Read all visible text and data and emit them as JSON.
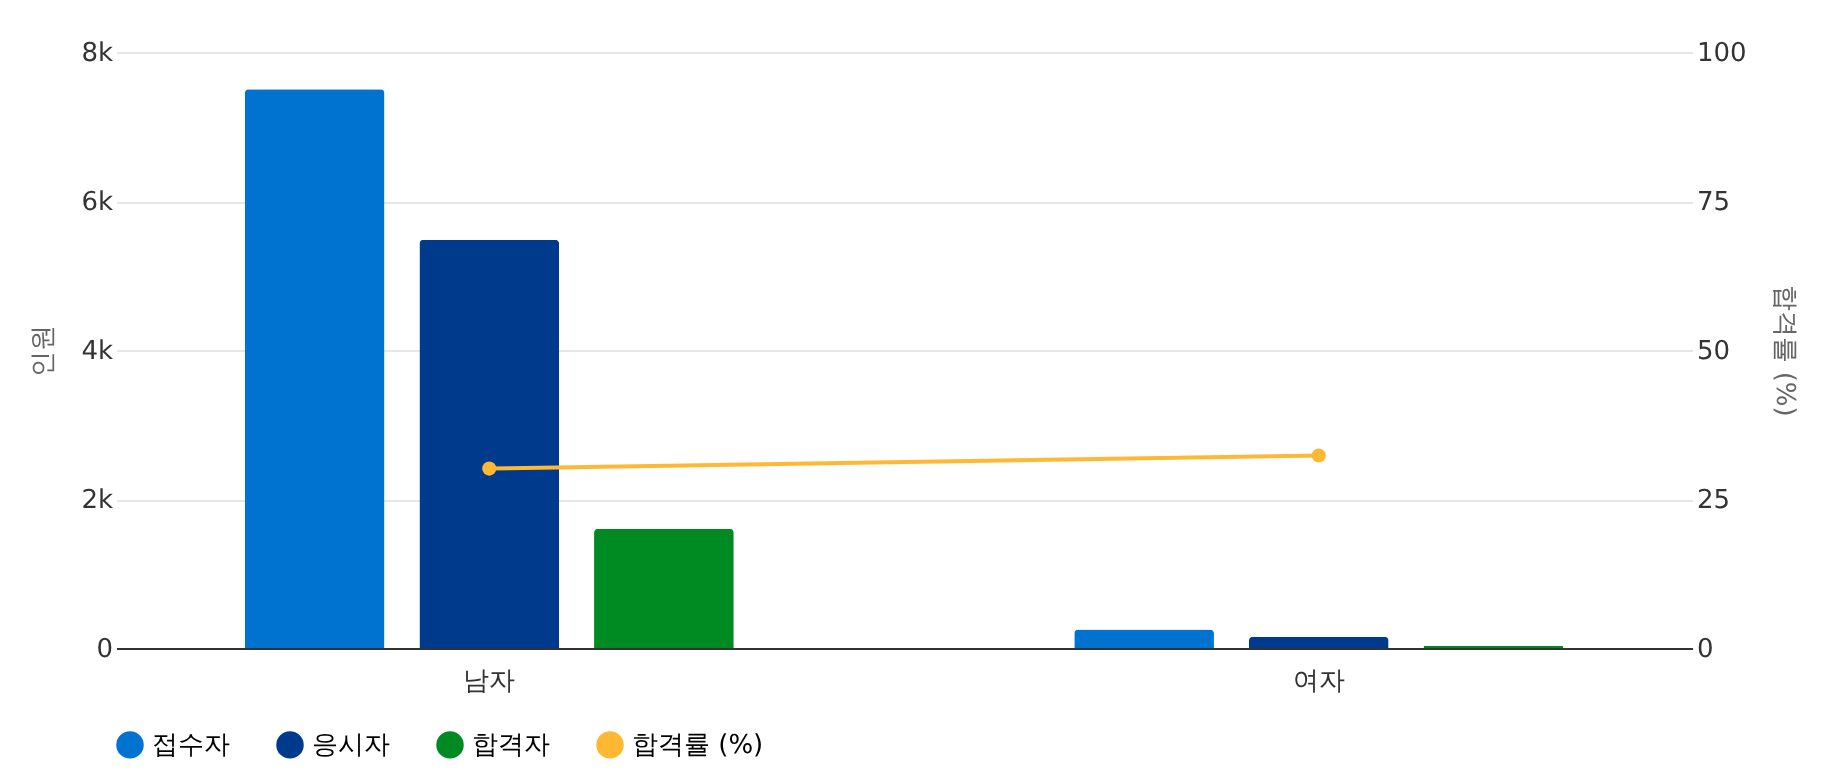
{
  "chart_data": {
    "type": "bar",
    "categories": [
      "남자",
      "여자"
    ],
    "ylabel": "인원",
    "y2label": "합격률 (%)",
    "ylim": [
      0,
      8000
    ],
    "yticks": [
      0,
      {
        "value": 2000,
        "label": "2k"
      },
      {
        "value": 4000,
        "label": "4k"
      },
      {
        "value": 6000,
        "label": "6k"
      },
      {
        "value": 8000,
        "label": "8k"
      }
    ],
    "y2lim": [
      0,
      100
    ],
    "y2ticks": [
      0,
      25,
      50,
      75,
      100
    ],
    "grid": "y",
    "legend": "bottom",
    "marker": "circle",
    "series": [
      {
        "name": "접수자",
        "color": "#0073d1",
        "values": [
          7500,
          250
        ]
      },
      {
        "name": "응시자",
        "color": "#003a8c",
        "values": [
          5480,
          150
        ]
      },
      {
        "name": "합격자",
        "color": "#008a22",
        "values": [
          1600,
          30
        ]
      },
      {
        "name": "합격률 (%)",
        "type": "line",
        "axis": "y2",
        "color": "#ffb834",
        "values": [
          30.1,
          32.3
        ]
      }
    ]
  }
}
